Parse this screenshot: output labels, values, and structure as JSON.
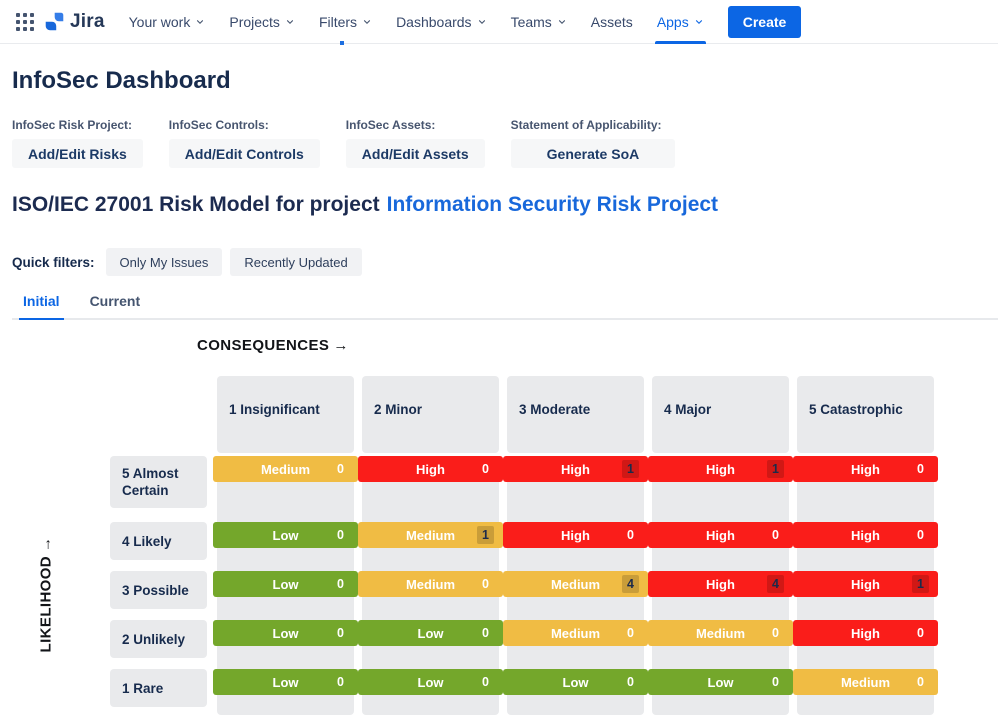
{
  "nav": {
    "logo_text": "Jira",
    "items": [
      {
        "label": "Your work",
        "chevron": true,
        "active": false
      },
      {
        "label": "Projects",
        "chevron": true,
        "active": false
      },
      {
        "label": "Filters",
        "chevron": true,
        "active": false
      },
      {
        "label": "Dashboards",
        "chevron": true,
        "active": false
      },
      {
        "label": "Teams",
        "chevron": true,
        "active": false
      },
      {
        "label": "Assets",
        "chevron": false,
        "active": false
      },
      {
        "label": "Apps",
        "chevron": true,
        "active": true
      }
    ],
    "create_label": "Create"
  },
  "page": {
    "title": "InfoSec Dashboard"
  },
  "actions": {
    "groups": [
      {
        "label": "InfoSec Risk Project:",
        "button": "Add/Edit Risks"
      },
      {
        "label": "InfoSec Controls:",
        "button": "Add/Edit Controls"
      },
      {
        "label": "InfoSec Assets:",
        "button": "Add/Edit Assets"
      },
      {
        "label": "Statement of Applicability:",
        "button": "Generate SoA"
      }
    ]
  },
  "risk_model": {
    "heading": "ISO/IEC 27001 Risk Model for project",
    "project_link": "Information Security Risk Project"
  },
  "quick_filters": {
    "label": "Quick filters:",
    "buttons": [
      "Only My Issues",
      "Recently Updated"
    ]
  },
  "tabs": [
    {
      "label": "Initial",
      "active": true
    },
    {
      "label": "Current",
      "active": false
    }
  ],
  "matrix": {
    "consequences_label": "CONSEQUENCES",
    "likelihood_label": "LIKELIHOOD",
    "columns": [
      "1 Insignificant",
      "2 Minor",
      "3 Moderate",
      "4 Major",
      "5 Catastrophic"
    ],
    "rows": [
      {
        "label": "5 Almost Certain",
        "cells": [
          {
            "level": "Medium",
            "count": 0
          },
          {
            "level": "High",
            "count": 0
          },
          {
            "level": "High",
            "count": 1
          },
          {
            "level": "High",
            "count": 1
          },
          {
            "level": "High",
            "count": 0
          }
        ]
      },
      {
        "label": "4 Likely",
        "cells": [
          {
            "level": "Low",
            "count": 0
          },
          {
            "level": "Medium",
            "count": 1
          },
          {
            "level": "High",
            "count": 0
          },
          {
            "level": "High",
            "count": 0
          },
          {
            "level": "High",
            "count": 0
          }
        ]
      },
      {
        "label": "3 Possible",
        "cells": [
          {
            "level": "Low",
            "count": 0
          },
          {
            "level": "Medium",
            "count": 0
          },
          {
            "level": "Medium",
            "count": 4
          },
          {
            "level": "High",
            "count": 4
          },
          {
            "level": "High",
            "count": 1
          }
        ]
      },
      {
        "label": "2 Unlikely",
        "cells": [
          {
            "level": "Low",
            "count": 0
          },
          {
            "level": "Low",
            "count": 0
          },
          {
            "level": "Medium",
            "count": 0
          },
          {
            "level": "Medium",
            "count": 0
          },
          {
            "level": "High",
            "count": 0
          }
        ]
      },
      {
        "label": "1 Rare",
        "cells": [
          {
            "level": "Low",
            "count": 0
          },
          {
            "level": "Low",
            "count": 0
          },
          {
            "level": "Low",
            "count": 0
          },
          {
            "level": "Low",
            "count": 0
          },
          {
            "level": "Medium",
            "count": 0
          }
        ]
      }
    ],
    "level_colors": {
      "High": "#FA1D1A",
      "Medium": "#F0BC44",
      "Low": "#74A72B"
    },
    "cell_bg": "#E9EAEC"
  },
  "colors": {
    "accent_blue": "#0C66E4",
    "link_blue": "#1868DB",
    "navy": "#172B4D"
  }
}
